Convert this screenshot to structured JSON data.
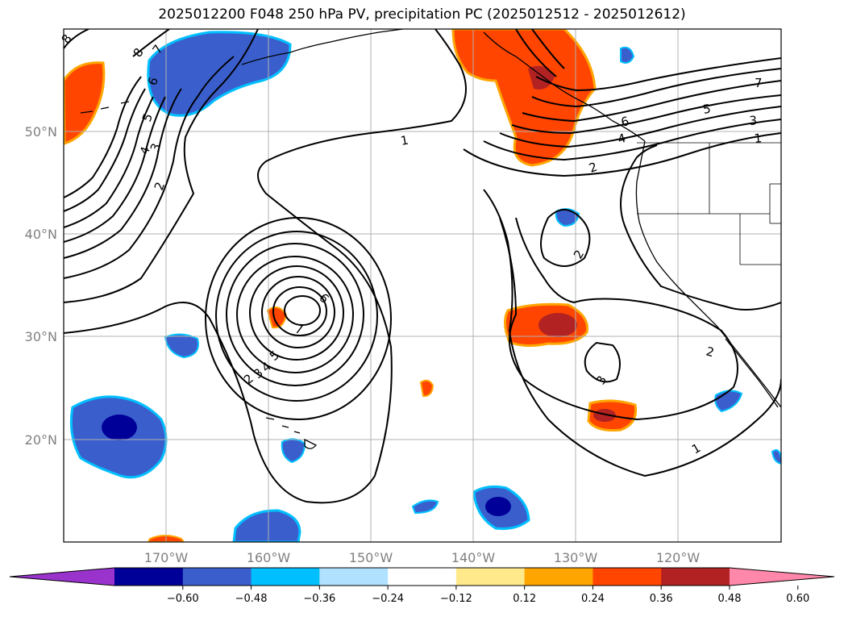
{
  "title": "2025012200 F048 250 hPa PV, precipitation PC (2025012512 - 2025012612)",
  "map": {
    "lon_range": [
      -180,
      -110
    ],
    "lat_range": [
      10,
      60
    ],
    "lat_ticks": [
      "50°N",
      "40°N",
      "30°N",
      "20°N"
    ],
    "lon_ticks": [
      "170°W",
      "160°W",
      "150°W",
      "140°W",
      "130°W",
      "120°W"
    ],
    "grid": true
  },
  "contour_labels": {
    "pv": [
      "8",
      "8",
      "7",
      "6",
      "5",
      "4",
      "3",
      "2",
      "1",
      "7",
      "6",
      "5",
      "4",
      "3",
      "2",
      "1",
      "2",
      "3",
      "7",
      "5",
      "3",
      "1",
      "6",
      "4",
      "2",
      "1",
      "2",
      "3",
      "2",
      "1"
    ]
  },
  "colorbar": {
    "ticks": [
      "−0.60",
      "−0.48",
      "−0.36",
      "−0.24",
      "−0.12",
      "0.12",
      "0.24",
      "0.36",
      "0.48",
      "0.60"
    ],
    "colors": [
      "#9933cc",
      "#000099",
      "#3a5fcd",
      "#00bfff",
      "#b0e2ff",
      "#ffffff",
      "#ffe98a",
      "#ffa500",
      "#ff4500",
      "#b22222",
      "#ff88aa"
    ],
    "extend": "both"
  }
}
